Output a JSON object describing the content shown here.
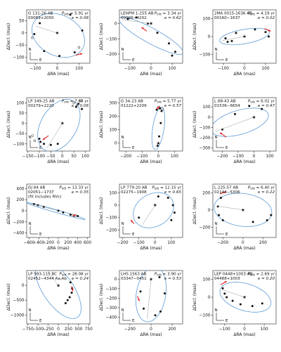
{
  "chart_data": [
    {
      "type": "scatter",
      "name_line1": "G 131-26 AB",
      "name_line2": "00089+2050",
      "period": "5.91 yr",
      "ecc": "e = 0.08",
      "xlabel": "ΔRA  (mas)",
      "ylabel": "ΔDecl.  (mas)",
      "xticks": [
        -100,
        0,
        100
      ],
      "yticks": [
        -100,
        -50,
        0,
        50
      ],
      "xlim": [
        -140,
        150
      ],
      "ylim": [
        -125,
        95
      ],
      "ellipse": {
        "cx": 5,
        "cy": -10,
        "rx": 125,
        "ry": 85,
        "rot": -20
      },
      "points": [
        [
          -80,
          40
        ],
        [
          -105,
          -5
        ],
        [
          -60,
          -75
        ],
        [
          10,
          -95
        ],
        [
          80,
          -80
        ],
        [
          115,
          10
        ],
        [
          60,
          75
        ]
      ],
      "open_points": [
        [
          -115,
          -20
        ],
        [
          100,
          -60
        ]
      ],
      "arrow": [
        [
          85,
          -92
        ],
        [
          115,
          -85
        ]
      ]
    },
    {
      "type": "scatter",
      "name_line1": "LEHPM 1-255 AB",
      "name_line2": "00096−4202",
      "period": "3.34 yr",
      "ecc": "e = 0.62",
      "xlabel": "ΔRA  (mas)",
      "ylabel": "ΔDecl.  (mas)",
      "xticks": [
        -100,
        0,
        100
      ],
      "yticks": [
        -200,
        -100,
        0
      ],
      "xlim": [
        -150,
        150
      ],
      "ylim": [
        -260,
        90
      ],
      "ellipse": {
        "cx": 0,
        "cy": -80,
        "rx": 190,
        "ry": 45,
        "rot": -38
      },
      "points": [
        [
          -70,
          40
        ],
        [
          -15,
          0
        ],
        [
          30,
          -60
        ],
        [
          85,
          -130
        ],
        [
          115,
          -185
        ],
        [
          100,
          -210
        ],
        [
          -110,
          30
        ]
      ],
      "open_points": [],
      "arrow": [
        [
          -20,
          -50
        ],
        [
          -45,
          -25
        ]
      ]
    },
    {
      "type": "scatter",
      "name_line1": "2MA 0015-1636 AB",
      "name_line2": "00160−1637",
      "period": "4.19 yr",
      "ecc": "e = 0.02",
      "xlabel": "ΔRA  (mas)",
      "ylabel": "ΔDecl.  (mas)",
      "xticks": [
        -100,
        0,
        100
      ],
      "yticks": [
        -100,
        0,
        100
      ],
      "xlim": [
        -150,
        150
      ],
      "ylim": [
        -150,
        150
      ],
      "ellipse": {
        "cx": 0,
        "cy": 0,
        "rx": 120,
        "ry": 40,
        "rot": 12
      },
      "points": [
        [
          -80,
          -30
        ],
        [
          -60,
          -25
        ],
        [
          -40,
          20
        ],
        [
          50,
          40
        ],
        [
          100,
          25
        ],
        [
          115,
          0
        ],
        [
          -90,
          -10
        ]
      ],
      "open_points": [],
      "arrow": [
        [
          95,
          45
        ],
        [
          125,
          30
        ]
      ]
    },
    {
      "type": "scatter",
      "name_line1": "LP 349-25 AB",
      "name_line2": "00279+2220",
      "period": "7.68 yr",
      "ecc": "e = 0.06",
      "xlabel": "ΔRA  (mas)",
      "ylabel": "ΔDecl.  (mas)",
      "xticks": [
        -150,
        -100,
        -50,
        0,
        50,
        100
      ],
      "yticks": [
        -100,
        -50,
        0,
        50,
        100
      ],
      "xlim": [
        -155,
        120
      ],
      "ylim": [
        -135,
        125
      ],
      "ellipse": {
        "cx": -15,
        "cy": -10,
        "rx": 135,
        "ry": 80,
        "rot": 65
      },
      "points": [
        [
          -100,
          -75
        ],
        [
          -95,
          -90
        ],
        [
          -80,
          -100
        ],
        [
          -50,
          -105
        ],
        [
          -20,
          -100
        ],
        [
          60,
          80
        ],
        [
          70,
          95
        ],
        [
          85,
          70
        ]
      ],
      "open_points": [
        [
          -130,
          -60
        ],
        [
          -120,
          -85
        ],
        [
          50,
          100
        ],
        [
          80,
          110
        ]
      ],
      "arrow": [
        [
          -60,
          -60
        ],
        [
          -85,
          -80
        ]
      ]
    },
    {
      "type": "scatter",
      "name_line1": "G 34-23 AB",
      "name_line2": "01222+2209",
      "period": "5.77 yr",
      "ecc": "e = 0.57",
      "xlabel": "ΔRA  (mas)",
      "ylabel": "ΔDecl.  (mas)",
      "xticks": [
        -200,
        -100,
        0,
        100
      ],
      "yticks": [
        0,
        100,
        200,
        300
      ],
      "xlim": [
        -240,
        150
      ],
      "ylim": [
        -60,
        340
      ],
      "ellipse": {
        "cx": 0,
        "cy": 110,
        "rx": 160,
        "ry": 35,
        "rot": 83
      },
      "points": [
        [
          -10,
          250
        ],
        [
          10,
          260
        ],
        [
          20,
          240
        ],
        [
          15,
          150
        ],
        [
          5,
          50
        ],
        [
          -5,
          -20
        ]
      ],
      "open_points": [
        [
          0,
          270
        ],
        [
          25,
          255
        ]
      ],
      "arrow": [
        [
          10,
          275
        ],
        [
          -10,
          255
        ]
      ]
    },
    {
      "type": "scatter",
      "name_line1": "L 88-43 AB",
      "name_line2": "01536−6654",
      "period": "6.02 yr",
      "ecc": "e = 0.47",
      "xlabel": "ΔRA  (mas)",
      "ylabel": "ΔDecl.  (mas)",
      "xticks": [
        -200,
        -100,
        0,
        100
      ],
      "yticks": [
        -300,
        -200,
        -100,
        0,
        100
      ],
      "xlim": [
        -260,
        140
      ],
      "ylim": [
        -330,
        190
      ],
      "ellipse": {
        "cx": -90,
        "cy": -50,
        "rx": 200,
        "ry": 110,
        "rot": 30
      },
      "points": [
        [
          -200,
          -120
        ],
        [
          -120,
          30
        ],
        [
          -30,
          110
        ],
        [
          50,
          80
        ]
      ],
      "open_points": [],
      "arrow": [
        [
          -175,
          -195
        ],
        [
          -215,
          -150
        ]
      ]
    },
    {
      "type": "scatter",
      "name_line1": "GJ 84 AB",
      "name_line2": "02051−1737",
      "note": "(fit includes RVs)",
      "period": "13.33 yr",
      "ecc": "e = 0.35",
      "xlabel": "ΔRA  (mas)",
      "ylabel": "ΔDecl.  (mas)",
      "xticks": [
        -600,
        -400,
        -200,
        0,
        200,
        400,
        600
      ],
      "yticks": [
        -400,
        -200,
        0,
        200,
        400
      ],
      "xlim": [
        -650,
        650
      ],
      "ylim": [
        -480,
        480
      ],
      "ellipse": {
        "cx": -50,
        "cy": -5,
        "rx": 620,
        "ry": 25,
        "rot": -14
      },
      "points": [
        [
          -500,
          120
        ],
        [
          -420,
          100
        ],
        [
          -300,
          70
        ],
        [
          100,
          -30
        ],
        [
          250,
          -70
        ],
        [
          330,
          -90
        ],
        [
          400,
          -95
        ]
      ],
      "open_points": [
        [
          300,
          -80
        ],
        [
          350,
          -85
        ]
      ],
      "arrow": [
        [
          300,
          -95
        ],
        [
          360,
          -70
        ]
      ]
    },
    {
      "type": "scatter",
      "name_line1": "LP 779-20 AB",
      "name_line2": "02275−1908",
      "period": "12.15 yr",
      "ecc": "e = 0.65",
      "xlabel": "ΔRA  (mas)",
      "ylabel": "ΔDecl.  (mas)",
      "xticks": [
        -200,
        -100,
        0,
        100
      ],
      "yticks": [
        -200,
        -100,
        0,
        100
      ],
      "xlim": [
        -220,
        170
      ],
      "ylim": [
        -260,
        170
      ],
      "ellipse": {
        "cx": -10,
        "cy": -40,
        "rx": 150,
        "ry": 115,
        "rot": 60
      },
      "points": [
        [
          20,
          70
        ],
        [
          80,
          60
        ],
        [
          110,
          0
        ],
        [
          120,
          -60
        ],
        [
          100,
          -120
        ],
        [
          -100,
          -100
        ]
      ],
      "open_points": [],
      "arrow": [
        [
          -130,
          -150
        ],
        [
          -150,
          -120
        ]
      ]
    },
    {
      "type": "scatter",
      "name_line1": "L 225-57 AB",
      "name_line2": "02144−5306",
      "period": "6.40 yr",
      "ecc": "e = 0.22",
      "xlabel": "ΔRA  (mas)",
      "ylabel": "ΔDecl.  (mas)",
      "xticks": [
        -200,
        0,
        200
      ],
      "yticks": [
        -200,
        0,
        200
      ],
      "xlim": [
        -300,
        330
      ],
      "ylim": [
        -320,
        300
      ],
      "ellipse": {
        "cx": 0,
        "cy": 0,
        "rx": 290,
        "ry": 190,
        "rot": -10
      },
      "points": [
        [
          -220,
          140
        ],
        [
          -250,
          40
        ],
        [
          -240,
          -60
        ],
        [
          -200,
          -120
        ],
        [
          100,
          -140
        ],
        [
          240,
          -120
        ],
        [
          280,
          -60
        ]
      ],
      "open_points": [],
      "arrow": [
        [
          -230,
          185
        ],
        [
          -170,
          210
        ]
      ]
    },
    {
      "type": "scatter",
      "name_line1": "LP 993-115 BC",
      "name_line2": "02452−4344 Aa,Ab",
      "period": "28.08 yr",
      "ecc": "e = 0.24",
      "xlabel": "ΔRA  (mas)",
      "ylabel": "ΔDecl.  (mas)",
      "xticks": [
        -750,
        -500,
        -250,
        0,
        250,
        500,
        750
      ],
      "yticks": [
        -1000,
        -500,
        0
      ],
      "xlim": [
        -780,
        780
      ],
      "ylim": [
        -1300,
        500
      ],
      "ellipse": {
        "cx": 0,
        "cy": -150,
        "rx": 1050,
        "ry": 400,
        "rot": -66
      },
      "points": [
        [
          300,
          100
        ],
        [
          340,
          -100
        ],
        [
          330,
          -250
        ],
        [
          280,
          -400
        ],
        [
          230,
          -500
        ],
        [
          180,
          -600
        ]
      ],
      "open_points": [],
      "arrow": [
        [
          330,
          -30
        ],
        [
          360,
          -200
        ]
      ]
    },
    {
      "type": "scatter",
      "name_line1": "LHS 1563 AB",
      "name_line2": "03347−0451",
      "period": "3.90 yr",
      "ecc": "e = 0.53",
      "xlabel": "ΔRA  (mas)",
      "ylabel": "ΔDecl.  (mas)",
      "xticks": [
        -200,
        0,
        200
      ],
      "yticks": [
        -400,
        -300,
        -200,
        -100,
        0
      ],
      "xlim": [
        -300,
        300
      ],
      "ylim": [
        -470,
        90
      ],
      "ellipse": {
        "cx": 0,
        "cy": -160,
        "rx": 290,
        "ry": 140,
        "rot": 82
      },
      "points": [
        [
          -100,
          -130
        ],
        [
          -70,
          -310
        ],
        [
          40,
          -380
        ],
        [
          90,
          -340
        ],
        [
          130,
          -150
        ],
        [
          80,
          20
        ]
      ],
      "open_points": [],
      "arrow": [
        [
          -130,
          -180
        ],
        [
          -110,
          -230
        ]
      ]
    },
    {
      "type": "scatter",
      "name_line1": "LEP 0448+1003 AB",
      "name_line2": "04488+1003",
      "period": "2.69 yr",
      "ecc": "e = 0.20",
      "xlabel": "ΔRA  (mas)",
      "ylabel": "ΔDecl.  (mas)",
      "xticks": [
        -100,
        0,
        100
      ],
      "yticks": [
        -100,
        0,
        100
      ],
      "xlim": [
        -160,
        160
      ],
      "ylim": [
        -150,
        150
      ],
      "ellipse": {
        "cx": 5,
        "cy": 0,
        "rx": 135,
        "ry": 75,
        "rot": -20
      },
      "points": [
        [
          -110,
          50
        ],
        [
          -100,
          20
        ],
        [
          -90,
          0
        ],
        [
          -60,
          -20
        ],
        [
          -20,
          -40
        ],
        [
          40,
          -50
        ],
        [
          90,
          -35
        ]
      ],
      "open_points": [],
      "arrow": [
        [
          -120,
          70
        ],
        [
          -90,
          90
        ]
      ]
    }
  ],
  "ui": {
    "period_prefix": "P",
    "period_sub": "orb",
    "period_eq": " = ",
    "compass_n": "N",
    "compass_e": "E"
  }
}
